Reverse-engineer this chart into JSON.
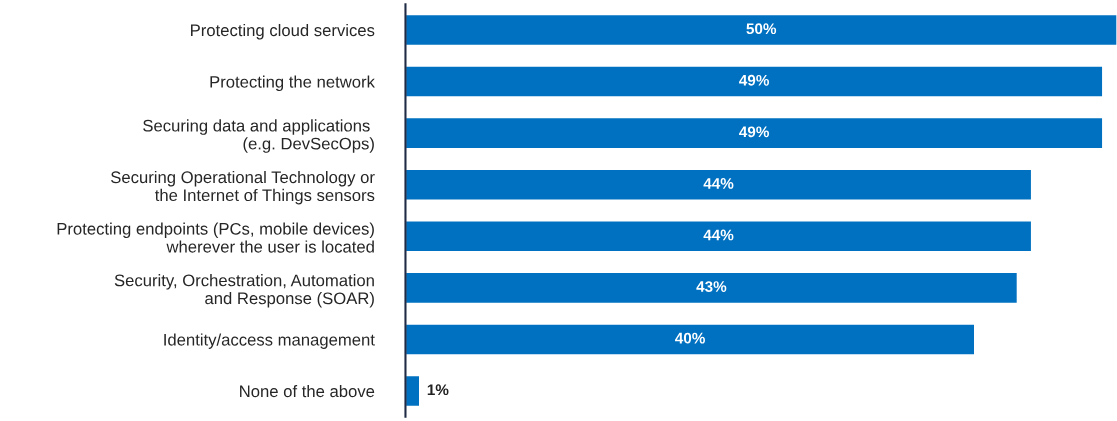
{
  "chart_data": {
    "type": "bar",
    "orientation": "horizontal",
    "categories": [
      "Protecting cloud services",
      "Protecting the network",
      "Securing data and applications \n(e.g. DevSecOps)",
      "Securing Operational Technology or\nthe Internet of Things sensors",
      "Protecting endpoints (PCs, mobile devices)\nwherever the user is located",
      "Security, Orchestration, Automation\nand Response (SOAR)",
      "Identity/access management",
      "None of the above"
    ],
    "values": [
      50,
      49,
      49,
      44,
      44,
      43,
      40,
      1
    ],
    "value_labels": [
      "50%",
      "49%",
      "49%",
      "44%",
      "44%",
      "43%",
      "40%",
      "1%"
    ],
    "color": "#0070c0",
    "tick_labels": "y"
  }
}
